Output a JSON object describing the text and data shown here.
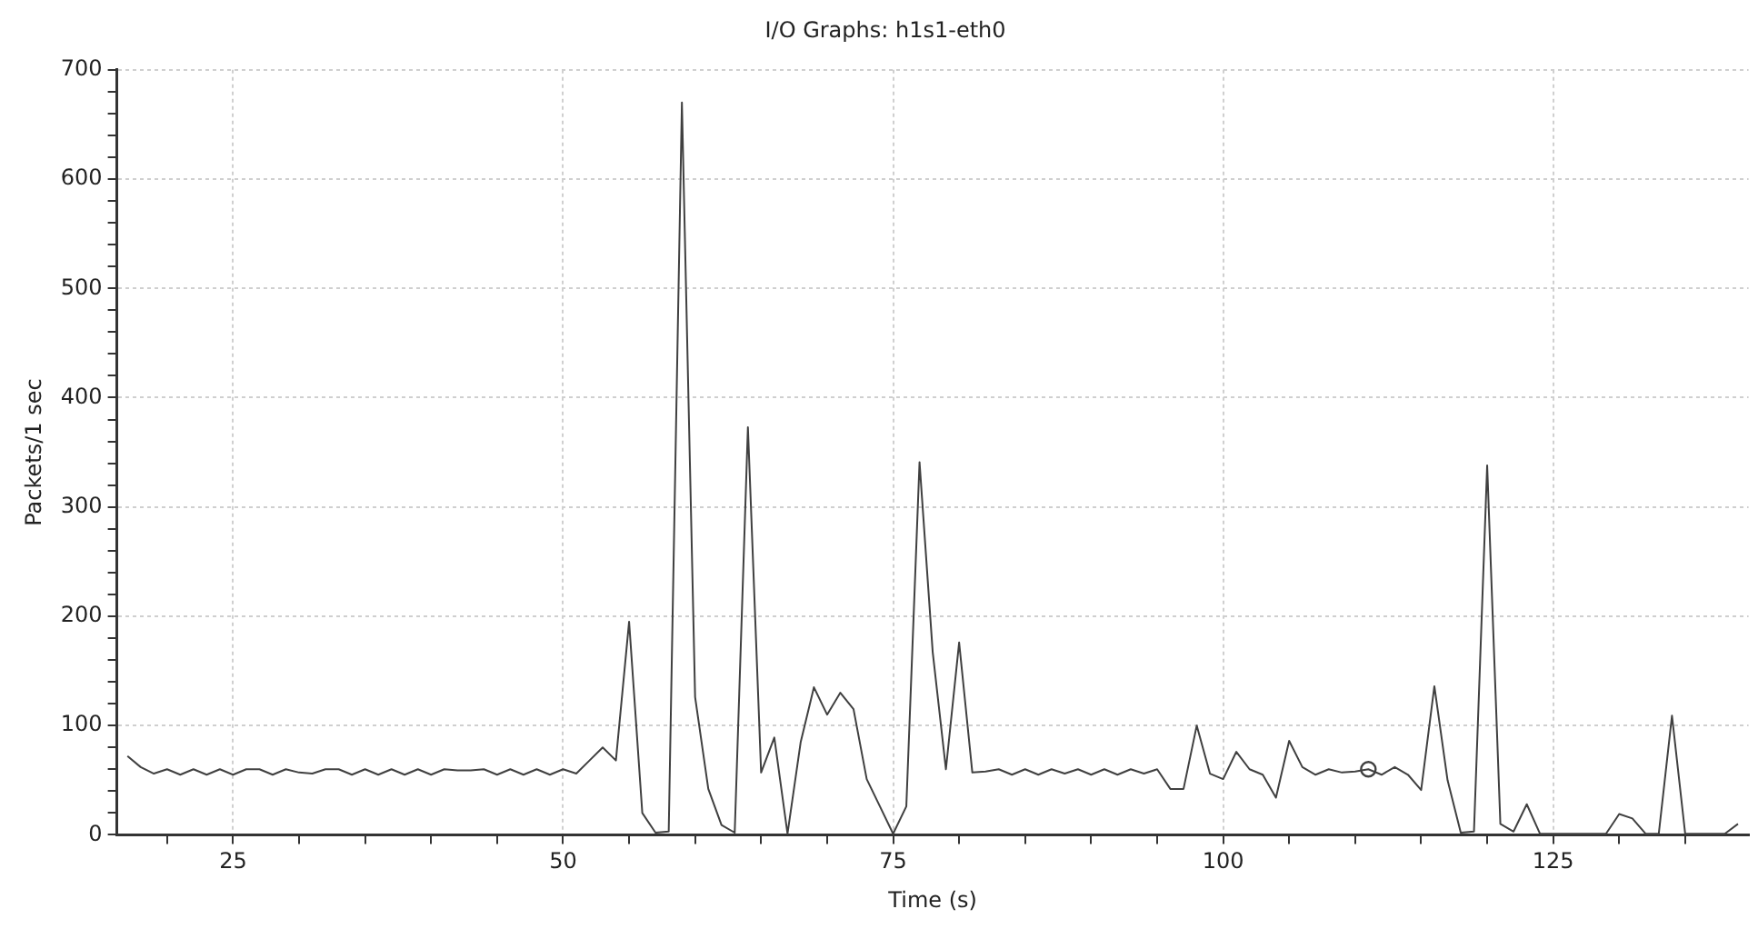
{
  "chart_data": {
    "type": "line",
    "title": "I/O Graphs: h1s1-eth0",
    "xlabel": "Time (s)",
    "ylabel": "Packets/1 sec",
    "xlim": [
      16.2,
      139.8
    ],
    "xticks": [
      {
        "value": 20,
        "label": null
      },
      25,
      {
        "value": 30,
        "label": null
      },
      {
        "value": 35,
        "label": null
      },
      {
        "value": 40,
        "label": null
      },
      {
        "value": 45,
        "label": null
      },
      50,
      {
        "value": 55,
        "label": null
      },
      {
        "value": 60,
        "label": null
      },
      {
        "value": 65,
        "label": null
      },
      {
        "value": 70,
        "label": null
      },
      75,
      {
        "value": 80,
        "label": null
      },
      {
        "value": 85,
        "label": null
      },
      {
        "value": 90,
        "label": null
      },
      {
        "value": 95,
        "label": null
      },
      100,
      {
        "value": 105,
        "label": null
      },
      {
        "value": 110,
        "label": null
      },
      {
        "value": 115,
        "label": null
      },
      {
        "value": 120,
        "label": null
      },
      125,
      {
        "value": 130,
        "label": null
      },
      {
        "value": 135,
        "label": null
      }
    ],
    "ylim": [
      0,
      700
    ],
    "yticks": [
      0,
      {
        "value": 20,
        "label": null
      },
      {
        "value": 40,
        "label": null
      },
      {
        "value": 60,
        "label": null
      },
      {
        "value": 80,
        "label": null
      },
      100,
      {
        "value": 120,
        "label": null
      },
      {
        "value": 140,
        "label": null
      },
      {
        "value": 160,
        "label": null
      },
      {
        "value": 180,
        "label": null
      },
      200,
      {
        "value": 220,
        "label": null
      },
      {
        "value": 240,
        "label": null
      },
      {
        "value": 260,
        "label": null
      },
      {
        "value": 280,
        "label": null
      },
      300,
      {
        "value": 320,
        "label": null
      },
      {
        "value": 340,
        "label": null
      },
      {
        "value": 360,
        "label": null
      },
      {
        "value": 380,
        "label": null
      },
      400,
      {
        "value": 420,
        "label": null
      },
      {
        "value": 440,
        "label": null
      },
      {
        "value": 460,
        "label": null
      },
      {
        "value": 480,
        "label": null
      },
      500,
      {
        "value": 520,
        "label": null
      },
      {
        "value": 540,
        "label": null
      },
      {
        "value": 560,
        "label": null
      },
      {
        "value": 580,
        "label": null
      },
      600,
      {
        "value": 620,
        "label": null
      },
      {
        "value": 640,
        "label": null
      },
      {
        "value": 660,
        "label": null
      },
      {
        "value": 680,
        "label": null
      },
      700
    ],
    "grid": true,
    "legend": false,
    "marker": "none",
    "line_style": "solid",
    "series": [
      {
        "color": "#404040",
        "x": [
          17,
          18,
          19,
          20,
          21,
          22,
          23,
          24,
          25,
          26,
          27,
          28,
          29,
          30,
          31,
          32,
          33,
          34,
          35,
          36,
          37,
          38,
          39,
          40,
          41,
          42,
          43,
          44,
          45,
          46,
          47,
          48,
          49,
          50,
          51,
          52,
          53,
          54,
          55,
          56,
          57,
          58,
          59,
          60,
          61,
          62,
          63,
          64,
          65,
          66,
          67,
          68,
          69,
          70,
          71,
          72,
          73,
          74,
          75,
          76,
          77,
          78,
          79,
          80,
          81,
          82,
          83,
          84,
          85,
          86,
          87,
          88,
          89,
          90,
          91,
          92,
          93,
          94,
          95,
          96,
          97,
          98,
          99,
          100,
          101,
          102,
          103,
          104,
          105,
          106,
          107,
          108,
          109,
          110,
          111,
          112,
          113,
          114,
          115,
          116,
          117,
          118,
          119,
          120,
          121,
          122,
          123,
          124,
          125,
          126,
          127,
          128,
          129,
          130,
          131,
          132,
          133,
          134,
          135,
          136,
          137,
          138,
          139
        ],
        "values": [
          72,
          62,
          56,
          60,
          55,
          60,
          55,
          60,
          55,
          60,
          60,
          55,
          60,
          57,
          56,
          60,
          60,
          55,
          60,
          55,
          60,
          55,
          60,
          55,
          60,
          59,
          59,
          60,
          55,
          60,
          55,
          60,
          55,
          60,
          56,
          68,
          80,
          68,
          195,
          20,
          2,
          3,
          670,
          126,
          42,
          9,
          2,
          373,
          57,
          89,
          1,
          85,
          135,
          110,
          130,
          115,
          51,
          26,
          1,
          26,
          341,
          167,
          60,
          176,
          57,
          58,
          60,
          55,
          60,
          55,
          60,
          56,
          60,
          55,
          60,
          55,
          60,
          56,
          60,
          42,
          42,
          100,
          56,
          51,
          76,
          60,
          55,
          34,
          86,
          62,
          55,
          60,
          57,
          58,
          60,
          55,
          62,
          55,
          41,
          136,
          50,
          2,
          3,
          338,
          10,
          3,
          28,
          1,
          1,
          1,
          1,
          1,
          1,
          19,
          15,
          1,
          1,
          109,
          1,
          1,
          1,
          1,
          10
        ]
      },
      {
        "type": "scatter",
        "color": "#404040",
        "marker": "circle",
        "x": [
          111
        ],
        "values": [
          60
        ]
      }
    ]
  }
}
